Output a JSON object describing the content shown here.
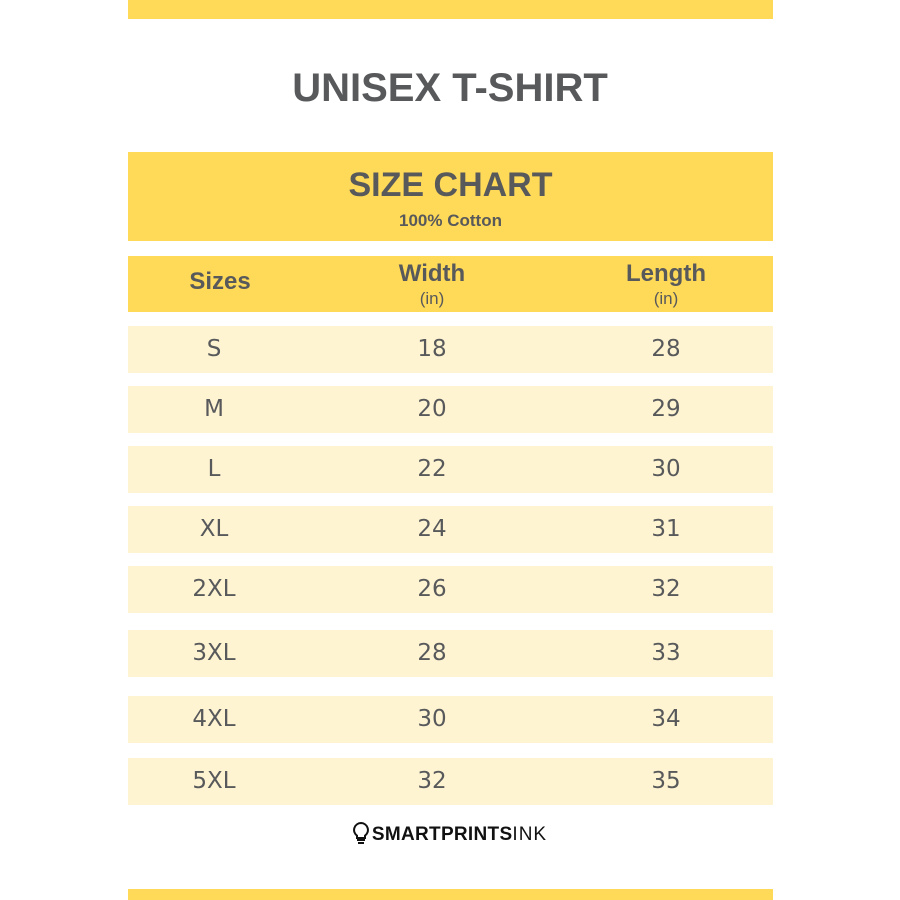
{
  "title": "UNISEX T-SHIRT",
  "header": {
    "title": "SIZE CHART",
    "subtitle": "100% Cotton"
  },
  "columns": [
    {
      "label": "Sizes",
      "unit": ""
    },
    {
      "label": "Width",
      "unit": "(in)"
    },
    {
      "label": "Length",
      "unit": "(in)"
    }
  ],
  "rows": [
    {
      "size": "S",
      "width": "18",
      "length": "28"
    },
    {
      "size": "M",
      "width": "20",
      "length": "29"
    },
    {
      "size": "L",
      "width": "22",
      "length": "30"
    },
    {
      "size": "XL",
      "width": "24",
      "length": "31"
    },
    {
      "size": "2XL",
      "width": "26",
      "length": "32"
    },
    {
      "size": "3XL",
      "width": "28",
      "length": "33"
    },
    {
      "size": "4XL",
      "width": "30",
      "length": "34"
    },
    {
      "size": "5XL",
      "width": "32",
      "length": "35"
    }
  ],
  "logo": {
    "bold": "SMARTPRINTS",
    "light": "INK",
    "icon": "lightbulb-icon"
  },
  "colors": {
    "accent": "#ffd958",
    "row": "#fff4d2",
    "text": "#58595b"
  }
}
